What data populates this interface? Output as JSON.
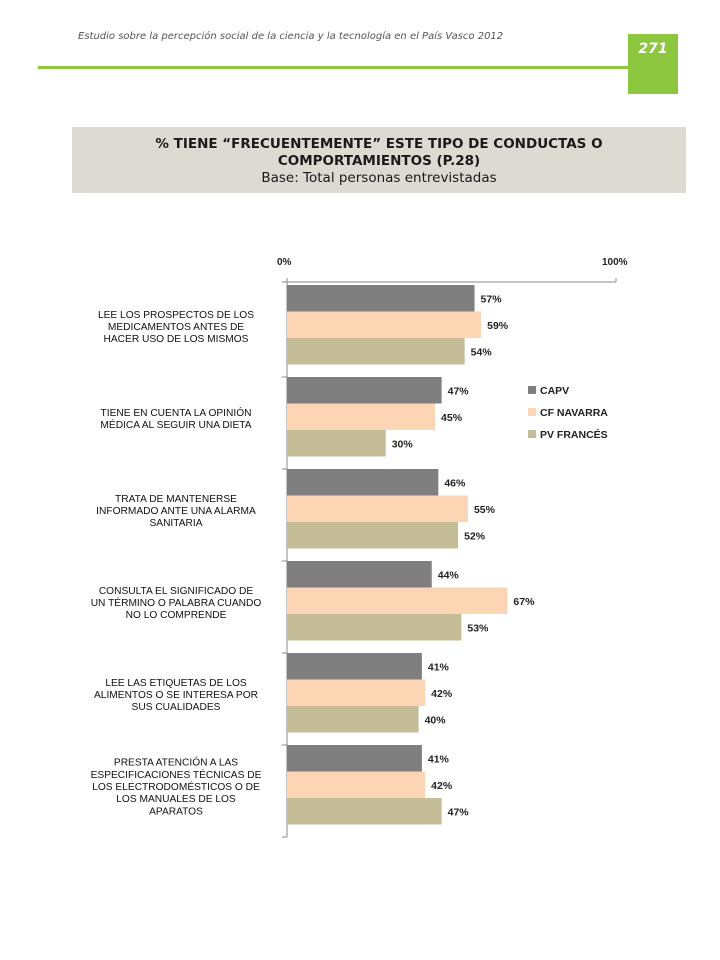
{
  "header": {
    "running_title": "Estudio sobre la percepción social de la ciencia y la tecnología en el País Vasco 2012",
    "page_number": "271",
    "accent_color": "#8dc63f"
  },
  "title_box": {
    "line1": "% TIENE “FRECUENTEMENTE” ESTE TIPO DE CONDUCTAS O",
    "line2": "COMPORTAMIENTOS (P.28)",
    "subtitle": "Base: Total personas entrevistadas"
  },
  "chart_data": {
    "type": "bar",
    "orientation": "horizontal",
    "xlim": [
      0,
      100
    ],
    "x_tick_labels": [
      "0%",
      "100%"
    ],
    "value_suffix": "%",
    "legend_position": "right",
    "categories": [
      [
        "LEE LOS PROSPECTOS DE LOS",
        "MEDICAMENTOS ANTES DE",
        "HACER USO DE LOS MISMOS"
      ],
      [
        "TIENE EN CUENTA LA OPINIÓN",
        "MÉDICA AL SEGUIR UNA DIETA"
      ],
      [
        "TRATA DE MANTENERSE",
        "INFORMADO ANTE UNA ALARMA",
        "SANITARIA"
      ],
      [
        "CONSULTA EL SIGNIFICADO DE",
        "UN TÉRMINO O PALABRA CUANDO",
        "NO LO COMPRENDE"
      ],
      [
        "LEE LAS ETIQUETAS DE LOS",
        "ALIMENTOS O SE INTERESA POR",
        "SUS CUALIDADES"
      ],
      [
        "PRESTA ATENCIÓN A LAS",
        "ESPECIFICACIONES TÉCNICAS DE",
        "LOS  ELECTRODOMÉSTICOS O DE",
        "LOS MANUALES DE LOS",
        "APARATOS"
      ]
    ],
    "series": [
      {
        "name": "CAPV",
        "color": "#7f7f7f",
        "values": [
          57,
          47,
          46,
          44,
          41,
          41
        ]
      },
      {
        "name": "CF NAVARRA",
        "color": "#fcd5b5",
        "values": [
          59,
          45,
          55,
          67,
          42,
          42
        ]
      },
      {
        "name": "PV FRANCÉS",
        "color": "#c4bd97",
        "values": [
          54,
          30,
          52,
          53,
          40,
          47
        ]
      }
    ]
  }
}
